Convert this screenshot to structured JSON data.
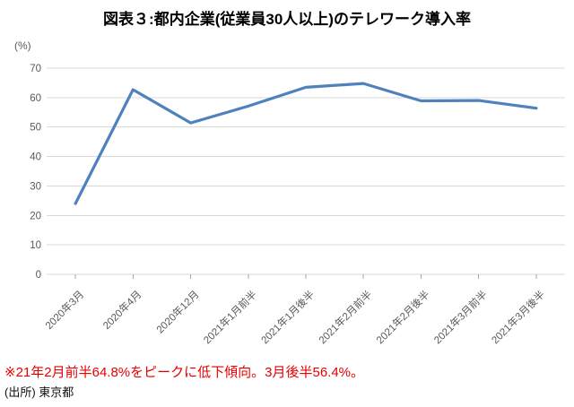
{
  "annotation": {
    "text": "※21年2月前半64.8%をピークに低下傾向。3月後半56.4%。",
    "color": "#e60000"
  },
  "source": {
    "text": "(出所) 東京都"
  },
  "colors": {
    "line": "#4f81bd",
    "grid": "#d9d9d9",
    "axis_tick": "#a6a6a6",
    "axis_text": "#595959",
    "title_text": "#000000"
  },
  "chart_data": {
    "type": "line",
    "title": "図表３:都内企業(従業員30人以上)のテレワーク導入率",
    "y_unit": "(%)",
    "xlabel": "",
    "ylabel": "(%)",
    "categories": [
      "2020年3月",
      "2020年4月",
      "2020年12月",
      "2021年1月前半",
      "2021年1月後半",
      "2021年2月前半",
      "2021年2月後半",
      "2021年3月前半",
      "2021年3月後半"
    ],
    "series": [
      {
        "name": "テレワーク導入率",
        "values": [
          24.0,
          62.7,
          51.4,
          57.1,
          63.5,
          64.8,
          58.9,
          59.0,
          56.4
        ]
      }
    ],
    "ylim": [
      0,
      70
    ],
    "yticks": [
      0,
      10,
      20,
      30,
      40,
      50,
      60,
      70
    ],
    "grid": true,
    "legend": false,
    "x_label_rotation": -45
  }
}
